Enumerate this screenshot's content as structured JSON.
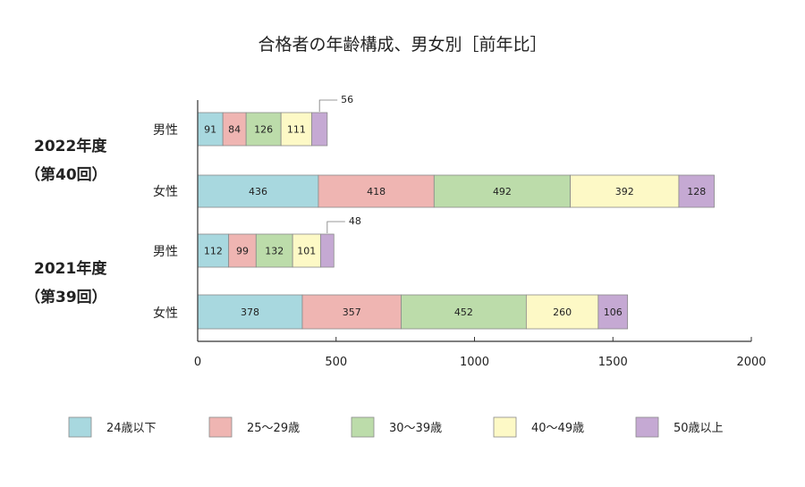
{
  "title": "合格者の年齢構成、男女別［前年比］",
  "chart_data": {
    "type": "bar",
    "orientation": "horizontal",
    "stacked": true,
    "title": "合格者の年齢構成、男女別［前年比］",
    "xlim": [
      0,
      2000
    ],
    "x_ticks": [
      "0",
      "500",
      "1000",
      "1500",
      "2000"
    ],
    "grid": false,
    "legend_position": "bottom",
    "groups": [
      {
        "label_line1": "2022年度",
        "label_line2": "（第40回）"
      },
      {
        "label_line1": "2021年度",
        "label_line2": "（第39回）"
      }
    ],
    "categories": [
      "男性",
      "女性",
      "男性",
      "女性"
    ],
    "series": [
      {
        "name": "24歳以下",
        "color": "#a8d8df",
        "values": [
          91,
          436,
          112,
          378
        ]
      },
      {
        "name": "25〜29歳",
        "color": "#efb5b2",
        "values": [
          84,
          418,
          99,
          357
        ]
      },
      {
        "name": "30〜39歳",
        "color": "#bcdcaa",
        "values": [
          126,
          492,
          132,
          452
        ]
      },
      {
        "name": "40〜49歳",
        "color": "#fdf9c6",
        "values": [
          111,
          392,
          101,
          260
        ]
      },
      {
        "name": "50歳以上",
        "color": "#c5a9d3",
        "values": [
          56,
          128,
          48,
          106
        ]
      }
    ]
  }
}
